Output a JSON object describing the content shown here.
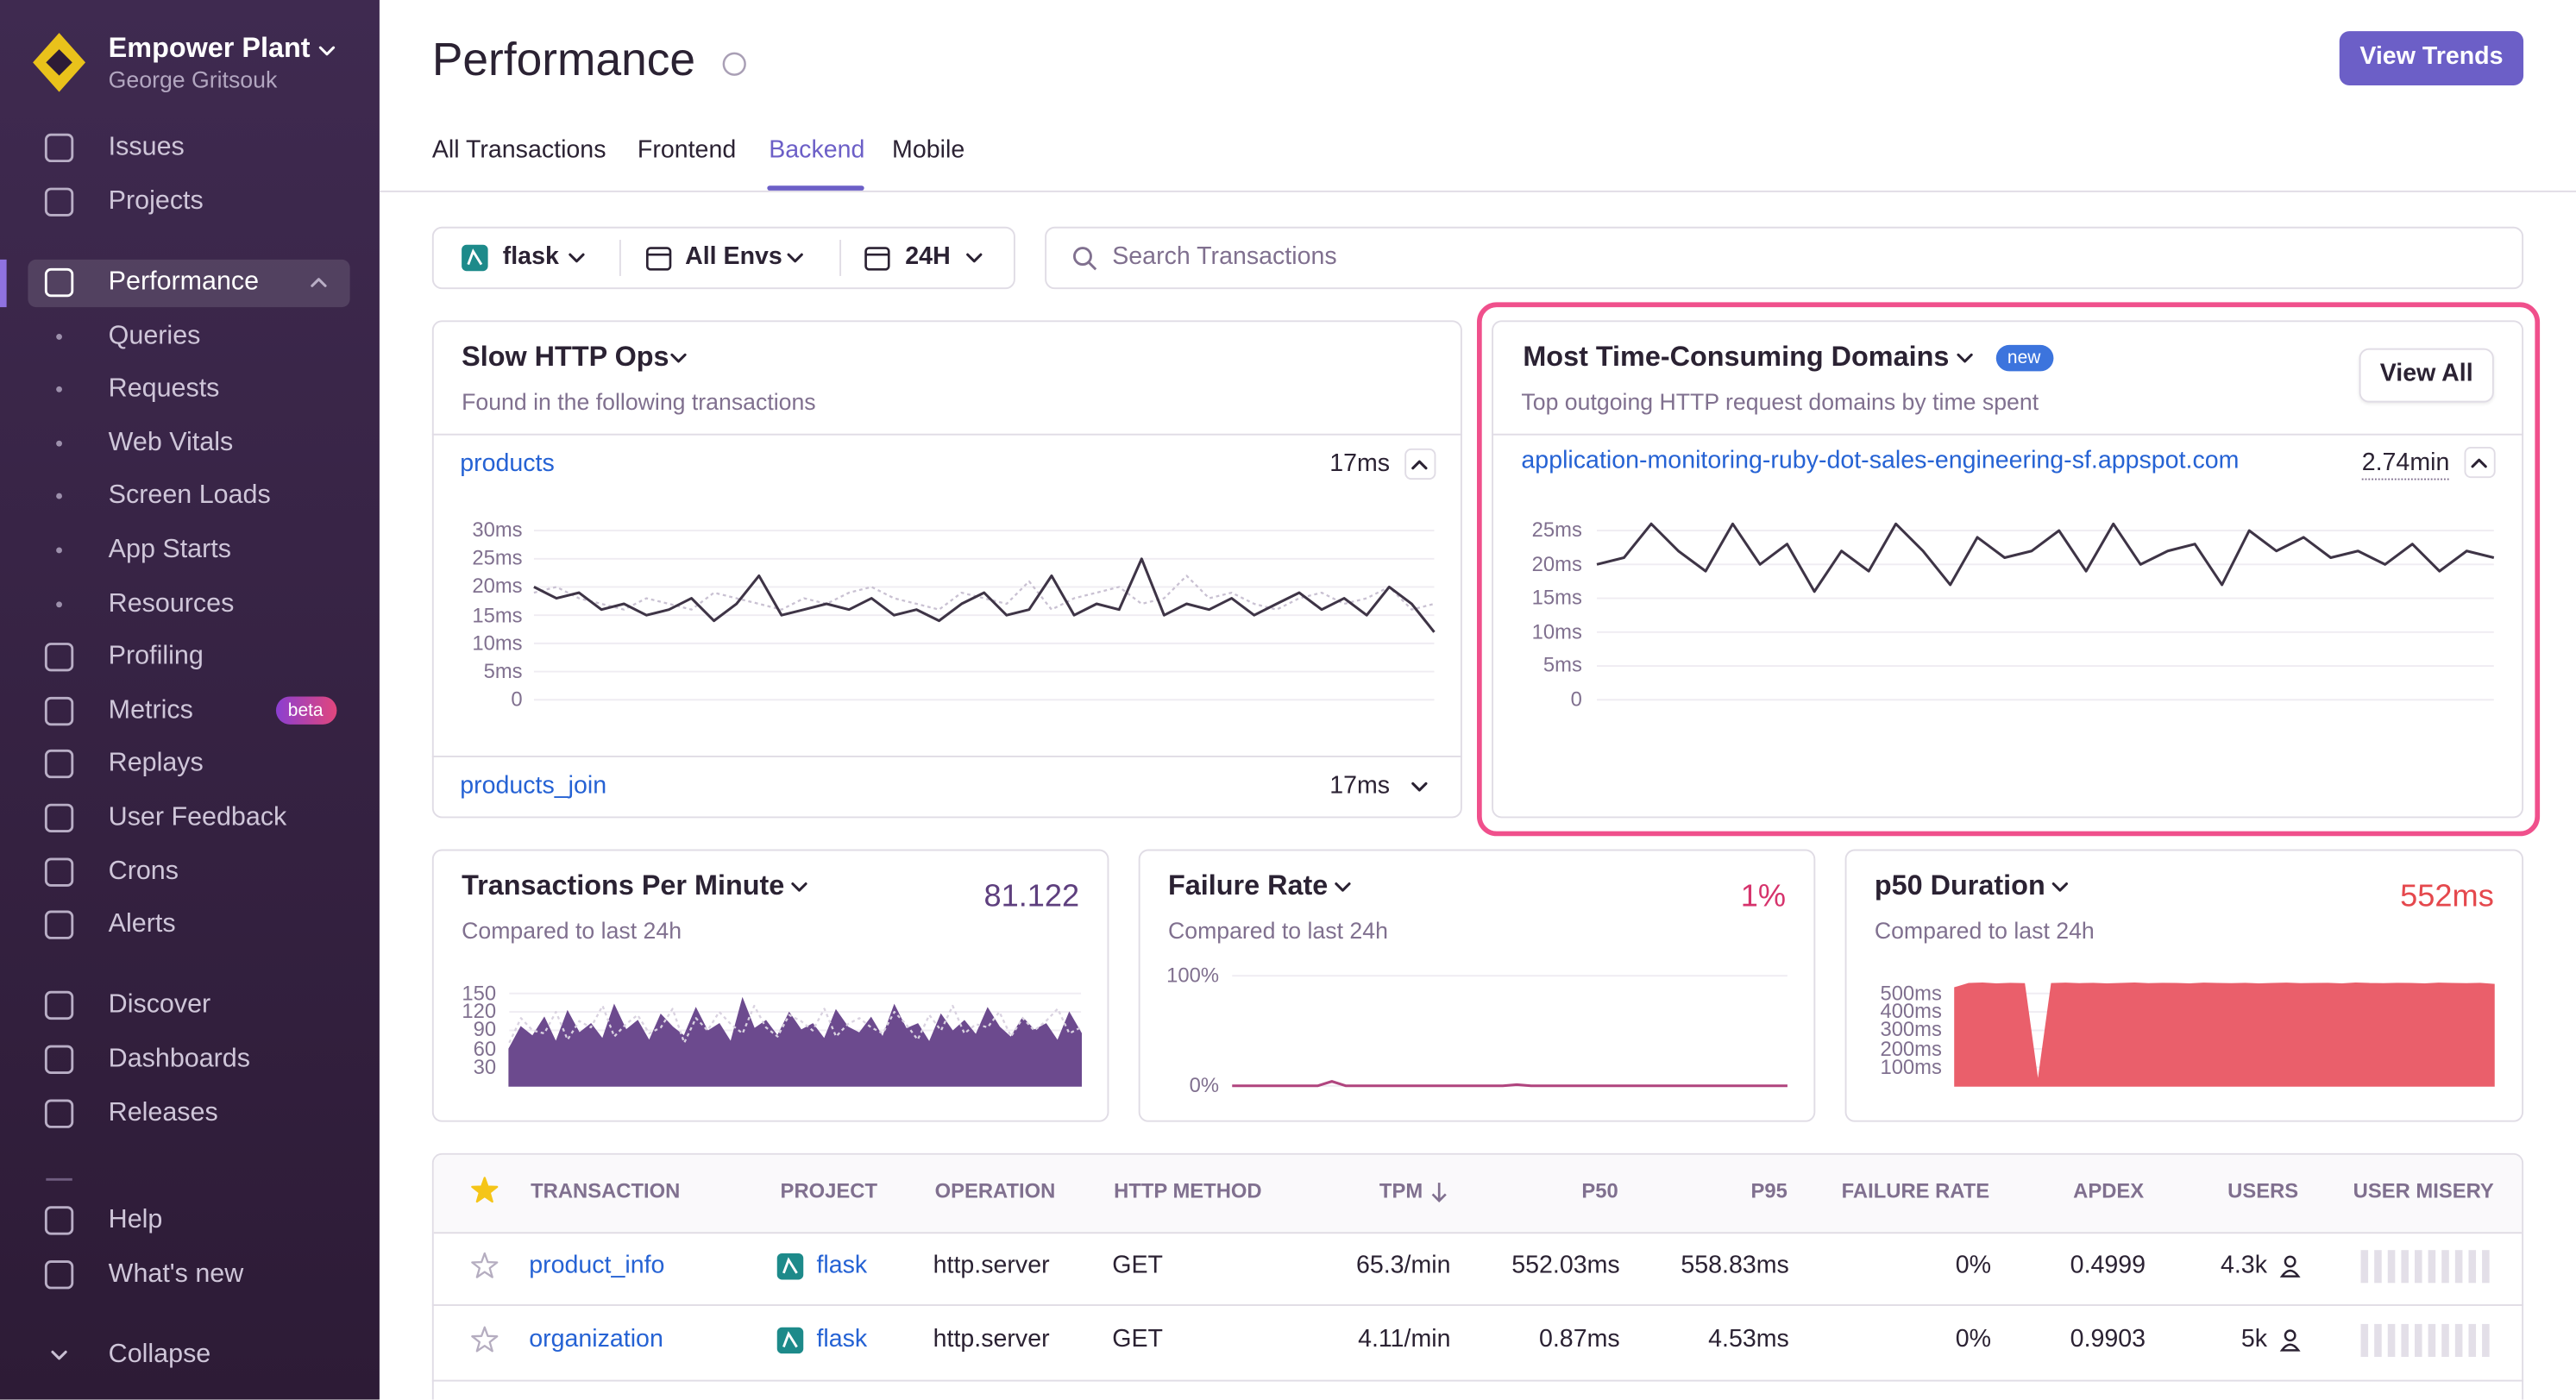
{
  "sidebar": {
    "org_name": "Empower Plant",
    "user_name": "George Gritsouk",
    "nav": [
      {
        "label": "Issues"
      },
      {
        "label": "Projects"
      },
      {
        "label": "Performance",
        "active": true
      },
      {
        "label": "Queries",
        "sub": true
      },
      {
        "label": "Requests",
        "sub": true
      },
      {
        "label": "Web Vitals",
        "sub": true
      },
      {
        "label": "Screen Loads",
        "sub": true
      },
      {
        "label": "App Starts",
        "sub": true
      },
      {
        "label": "Resources",
        "sub": true
      },
      {
        "label": "Profiling"
      },
      {
        "label": "Metrics",
        "badge": "beta"
      },
      {
        "label": "Replays"
      },
      {
        "label": "User Feedback"
      },
      {
        "label": "Crons"
      },
      {
        "label": "Alerts"
      },
      {
        "label": "Discover"
      },
      {
        "label": "Dashboards"
      },
      {
        "label": "Releases"
      },
      {
        "label": "Help"
      },
      {
        "label": "What's new"
      },
      {
        "label": "Collapse"
      }
    ]
  },
  "header": {
    "title": "Performance",
    "action": "View Trends",
    "tabs": [
      {
        "label": "All Transactions"
      },
      {
        "label": "Frontend"
      },
      {
        "label": "Backend",
        "active": true
      },
      {
        "label": "Mobile"
      }
    ]
  },
  "filters": {
    "project": "flask",
    "environment": "All Envs",
    "period": "24H",
    "search_placeholder": "Search Transactions"
  },
  "slow_ops": {
    "title": "Slow HTTP Ops",
    "subtitle": "Found in the following transactions",
    "rows": [
      {
        "name": "products",
        "duration": "17ms"
      },
      {
        "name": "products_join",
        "duration": "17ms"
      }
    ],
    "chart": {
      "ylim": [
        0,
        30
      ],
      "yticks": [
        {
          "value": 30,
          "label": "30ms"
        },
        {
          "value": 25,
          "label": "25ms"
        },
        {
          "value": 20,
          "label": "20ms"
        },
        {
          "value": 15,
          "label": "15ms"
        },
        {
          "value": 10,
          "label": "10ms"
        },
        {
          "value": 5,
          "label": "5ms"
        },
        0
      ],
      "color": "#3e3446",
      "previous_color": "#c9c1d2",
      "values": [
        20,
        18,
        19,
        16,
        17,
        15,
        16,
        18,
        14,
        17,
        22,
        15,
        16,
        17,
        16,
        18,
        15,
        16,
        14,
        17,
        19,
        15,
        16,
        22,
        15,
        17,
        16,
        25,
        15,
        17,
        16,
        18,
        15,
        17,
        19,
        16,
        18,
        15,
        20,
        17,
        12
      ],
      "previous_values": [
        19,
        20,
        18,
        17,
        16,
        18,
        17,
        16,
        19,
        18,
        17,
        16,
        18,
        17,
        19,
        20,
        18,
        17,
        16,
        19,
        18,
        17,
        21,
        16,
        18,
        19,
        20,
        17,
        18,
        22,
        18,
        19,
        17,
        16,
        18,
        19,
        17,
        18,
        20,
        16,
        17
      ]
    }
  },
  "domains": {
    "title": "Most Time-Consuming Domains",
    "badge": "new",
    "action": "View All",
    "subtitle": "Top outgoing HTTP request domains by time spent",
    "rows": [
      {
        "name": "application-monitoring-ruby-dot-sales-engineering-sf.appspot.com",
        "duration": "2.74min"
      }
    ],
    "chart": {
      "ylim": [
        0,
        25
      ],
      "yticks": [
        {
          "value": 25,
          "label": "25ms"
        },
        {
          "value": 20,
          "label": "20ms"
        },
        {
          "value": 15,
          "label": "15ms"
        },
        {
          "value": 10,
          "label": "10ms"
        },
        {
          "value": 5,
          "label": "5ms"
        },
        0
      ],
      "color": "#3e3446",
      "values": [
        20,
        21,
        26,
        22,
        19,
        26,
        20,
        23,
        16,
        22,
        19,
        26,
        22,
        17,
        24,
        21,
        22,
        25,
        19,
        26,
        20,
        22,
        23,
        17,
        25,
        22,
        24,
        21,
        22,
        20,
        23,
        19,
        22,
        21
      ]
    }
  },
  "widgets": [
    {
      "title": "Transactions Per Minute",
      "subtitle": "Compared to last 24h",
      "value": "81.122",
      "value_color": "#5e3f7e",
      "chart": {
        "kind": "area",
        "ylim": [
          0,
          160
        ],
        "yticks": [
          150,
          120,
          90,
          60,
          30
        ],
        "color": "#6c4a8e",
        "previous_color": "#d9d2e0",
        "values": [
          60,
          95,
          80,
          110,
          70,
          120,
          85,
          100,
          75,
          130,
          90,
          105,
          72,
          115,
          95,
          80,
          125,
          88,
          100,
          70,
          140,
          92,
          105,
          80,
          118,
          90,
          100,
          75,
          122,
          95,
          85,
          110,
          78,
          130,
          92,
          100,
          70,
          115,
          88,
          105,
          82,
          125,
          95,
          78,
          110,
          90,
          100,
          72,
          118,
          85
        ],
        "previous_values": [
          70,
          110,
          90,
          85,
          120,
          75,
          105,
          95,
          130,
          80,
          100,
          115,
          85,
          95,
          125,
          70,
          110,
          90,
          120,
          100,
          85,
          130,
          95,
          80,
          115,
          105,
          90,
          125,
          80,
          100,
          110,
          95,
          85,
          120,
          100,
          75,
          115,
          90,
          130,
          85,
          100,
          95,
          120,
          80,
          110,
          90,
          105,
          125,
          85,
          95
        ]
      }
    },
    {
      "title": "Failure Rate",
      "subtitle": "Compared to last 24h",
      "value": "1%",
      "value_color": "#d6336c",
      "chart": {
        "kind": "line",
        "ylim": [
          0,
          100
        ],
        "yticks": [
          {
            "value": 100,
            "label": "100%"
          },
          {
            "value": 0,
            "label": "0%"
          }
        ],
        "color": "#b0447e",
        "values": [
          0,
          0,
          0,
          0,
          0,
          0,
          0,
          4,
          0,
          0,
          0,
          0,
          0,
          0,
          0,
          0,
          0,
          0,
          0,
          0,
          1,
          0,
          0,
          0,
          0,
          0,
          0,
          0,
          0,
          0,
          0,
          0,
          0,
          0,
          0,
          0,
          0,
          0,
          0,
          0
        ]
      }
    },
    {
      "title": "p50 Duration",
      "subtitle": "Compared to last 24h",
      "value": "552ms",
      "value_color": "#e5484d",
      "chart": {
        "kind": "area",
        "ylim": [
          0,
          560
        ],
        "yticks": [
          {
            "value": 500,
            "label": "500ms"
          },
          {
            "value": 400,
            "label": "400ms"
          },
          {
            "value": 300,
            "label": "300ms"
          },
          {
            "value": 200,
            "label": "200ms"
          },
          {
            "value": 100,
            "label": "100ms"
          }
        ],
        "color": "#ea5f6b",
        "values": [
          530,
          552,
          555,
          550,
          553,
          551,
          10,
          552,
          554,
          551,
          553,
          550,
          552,
          555,
          551,
          553,
          552,
          550,
          554,
          552,
          551,
          553,
          550,
          552,
          554,
          551,
          552,
          553,
          550,
          555,
          552,
          551,
          553,
          552,
          550,
          554,
          552,
          551,
          553,
          548
        ]
      }
    }
  ],
  "table": {
    "columns": [
      "TRANSACTION",
      "PROJECT",
      "OPERATION",
      "HTTP METHOD",
      "TPM",
      "P50",
      "P95",
      "FAILURE RATE",
      "APDEX",
      "USERS",
      "USER MISERY"
    ],
    "rows": [
      [
        "product_info",
        "flask",
        "http.server",
        "GET",
        "65.3/min",
        "552.03ms",
        "558.83ms",
        "0%",
        "0.4999",
        "4.3k"
      ],
      [
        "organization",
        "flask",
        "http.server",
        "GET",
        "4.11/min",
        "0.87ms",
        "4.53ms",
        "0%",
        "0.9903",
        "5k"
      ]
    ]
  }
}
